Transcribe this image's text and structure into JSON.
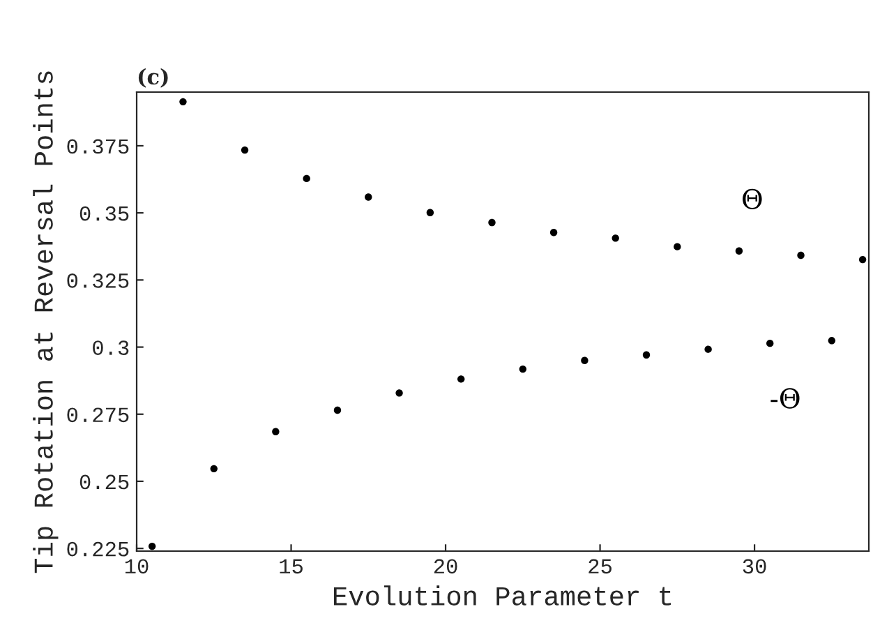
{
  "chart_data": {
    "type": "scatter",
    "title": "(c)",
    "xlabel": "Evolution Parameter t",
    "ylabel": "Tip Rotation at Reversal Points",
    "xlim": [
      10,
      33.7
    ],
    "ylim": [
      0.224,
      0.395
    ],
    "xticks": [
      10,
      15,
      20,
      25,
      30
    ],
    "yticks": [
      {
        "value": 0.225,
        "label": "0.225"
      },
      {
        "value": 0.25,
        "label": "0.25"
      },
      {
        "value": 0.275,
        "label": "0.275"
      },
      {
        "value": 0.3,
        "label": "0.3"
      },
      {
        "value": 0.325,
        "label": "0.325"
      },
      {
        "value": 0.35,
        "label": "0.35"
      },
      {
        "value": 0.375,
        "label": "0.375"
      }
    ],
    "grid": false,
    "legend": false,
    "marker": "circle",
    "series": [
      {
        "name": "Θ",
        "color": "#000000",
        "x": [
          11.5,
          13.5,
          15.5,
          17.5,
          19.5,
          21.5,
          23.5,
          25.5,
          27.5,
          29.5,
          31.5,
          33.5
        ],
        "values": [
          0.3914,
          0.3734,
          0.3628,
          0.3559,
          0.3501,
          0.3464,
          0.3427,
          0.3406,
          0.3374,
          0.3358,
          0.3342,
          0.3326
        ]
      },
      {
        "name": "-Θ",
        "color": "#000000",
        "x": [
          10.5,
          12.5,
          14.5,
          16.5,
          18.5,
          20.5,
          22.5,
          24.5,
          26.5,
          28.5,
          30.5,
          32.5
        ],
        "values": [
          0.2258,
          0.2547,
          0.2685,
          0.2765,
          0.2829,
          0.2881,
          0.2918,
          0.295,
          0.2971,
          0.2992,
          0.3014,
          0.3024
        ]
      }
    ]
  }
}
